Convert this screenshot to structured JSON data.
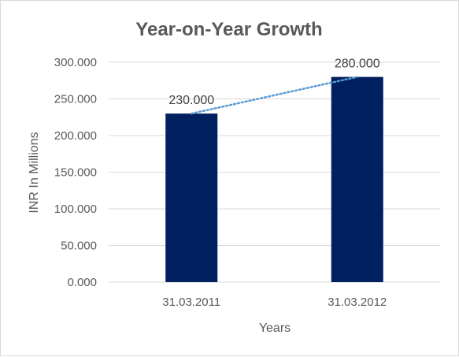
{
  "chart_data": {
    "type": "bar",
    "title": "Year-on-Year Growth",
    "xlabel": "Years",
    "ylabel": "INR In Millions",
    "categories": [
      "31.03.2011",
      "31.03.2012"
    ],
    "values": [
      230,
      280
    ],
    "data_labels": [
      "230.000",
      "280.000"
    ],
    "ylim": [
      0,
      300
    ],
    "yticks": [
      0,
      50,
      100,
      150,
      200,
      250,
      300
    ],
    "ytick_labels": [
      "0.000",
      "50.000",
      "100.000",
      "150.000",
      "200.000",
      "250.000",
      "300.000"
    ],
    "trendline": {
      "type": "linear",
      "style": "dotted",
      "color": "#5b9bd5"
    },
    "bar_color": "#002060",
    "grid": true,
    "legend": "none"
  }
}
